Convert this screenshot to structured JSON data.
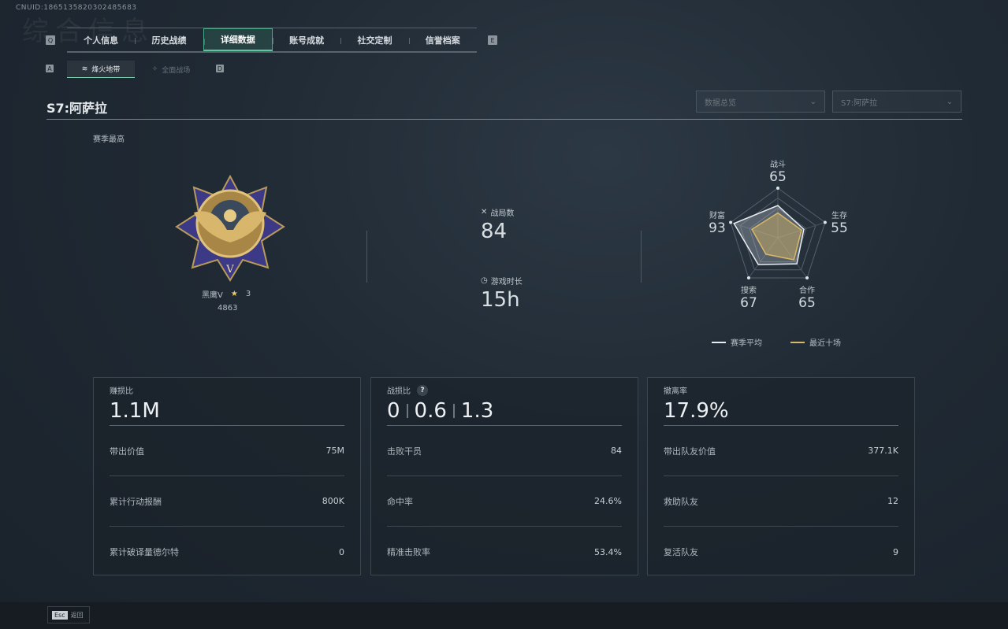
{
  "header": {
    "uid": "CNUID:1865135820302485683",
    "ghost_title": "综合信息"
  },
  "nav": {
    "prev_key": "Q",
    "next_key": "E",
    "tabs": [
      {
        "label": "个人信息"
      },
      {
        "label": "历史战绩"
      },
      {
        "label": "详细数据",
        "active": true
      },
      {
        "label": "账号成就"
      },
      {
        "label": "社交定制"
      },
      {
        "label": "信誉档案"
      }
    ]
  },
  "subnav": {
    "prev_key": "A",
    "next_key": "D",
    "tabs": [
      {
        "label": "烽火地带",
        "active": true
      },
      {
        "label": "全面战场"
      }
    ]
  },
  "page": {
    "title": "S7:阿萨拉",
    "filters": [
      {
        "value": "数据总览"
      },
      {
        "value": "S7:阿萨拉"
      }
    ]
  },
  "season": {
    "label": "赛季最高",
    "rank_name": "黑鹰V",
    "stars": "3",
    "score": "4863",
    "rank_tier": "V"
  },
  "summary": [
    {
      "label": "战局数",
      "value": "84",
      "icon": "crossed-swords-icon"
    },
    {
      "label": "游戏时长",
      "value": "15h",
      "icon": "clock-icon"
    }
  ],
  "chart_data": {
    "type": "radar",
    "axes": [
      "战斗",
      "生存",
      "合作",
      "搜索",
      "财富"
    ],
    "range": [
      0,
      100
    ],
    "series": [
      {
        "name": "赛季平均",
        "values": [
          65,
          55,
          65,
          67,
          93
        ],
        "color": "#e8ecef"
      },
      {
        "name": "最近十场",
        "values": [
          50,
          50,
          55,
          41,
          55
        ],
        "color": "#d9b866"
      }
    ]
  },
  "radar_labels": [
    {
      "label": "战斗",
      "value": "65"
    },
    {
      "label": "生存",
      "value": "55"
    },
    {
      "label": "合作",
      "value": "65"
    },
    {
      "label": "搜索",
      "value": "67"
    },
    {
      "label": "财富",
      "value": "93"
    }
  ],
  "legend": [
    {
      "label": "赛季平均"
    },
    {
      "label": "最近十场"
    }
  ],
  "cards": [
    {
      "label": "赚损比",
      "big": "1.1M",
      "rows": [
        {
          "k": "带出价值",
          "v": "75M"
        },
        {
          "k": "累计行动报酬",
          "v": "800K"
        },
        {
          "k": "累计破译量德尔特",
          "v": "0"
        }
      ]
    },
    {
      "label": "战损比",
      "help": "?",
      "big_parts": [
        "0",
        "0.6",
        "1.3"
      ],
      "rows": [
        {
          "k": "击败干员",
          "v": "84"
        },
        {
          "k": "命中率",
          "v": "24.6%"
        },
        {
          "k": "精准击败率",
          "v": "53.4%"
        }
      ]
    },
    {
      "label": "撤离率",
      "big": "17.9%",
      "rows": [
        {
          "k": "带出队友价值",
          "v": "377.1K"
        },
        {
          "k": "救助队友",
          "v": "12"
        },
        {
          "k": "复活队友",
          "v": "9"
        }
      ]
    }
  ],
  "footer": {
    "esc_key": "Esc",
    "esc_label": "返回"
  }
}
